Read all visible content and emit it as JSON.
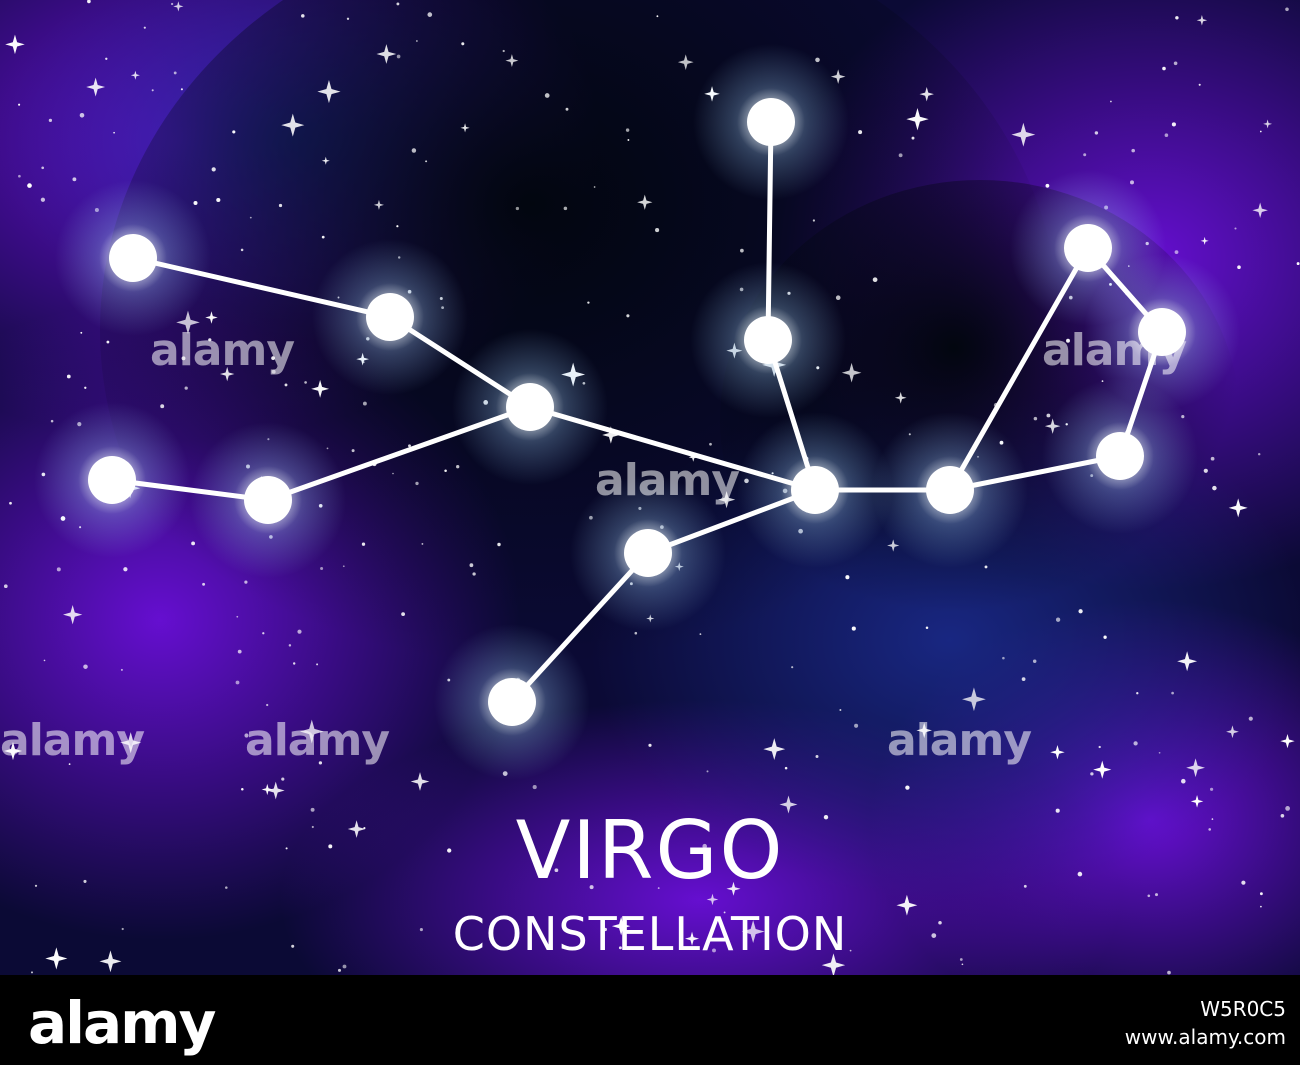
{
  "title": {
    "main": "VIRGO",
    "sub": "CONSTELLATION"
  },
  "watermark": "alamy",
  "footer": {
    "logo": "alamy",
    "image_id": "W5R0C5",
    "url": "www.alamy.com"
  },
  "colors": {
    "sky_deep": "#050a1e",
    "nebula_purple": "#6a0fd8",
    "nebula_blue": "#1a2a8a",
    "star": "#ffffff",
    "glow": "#9fd3ff"
  }
}
